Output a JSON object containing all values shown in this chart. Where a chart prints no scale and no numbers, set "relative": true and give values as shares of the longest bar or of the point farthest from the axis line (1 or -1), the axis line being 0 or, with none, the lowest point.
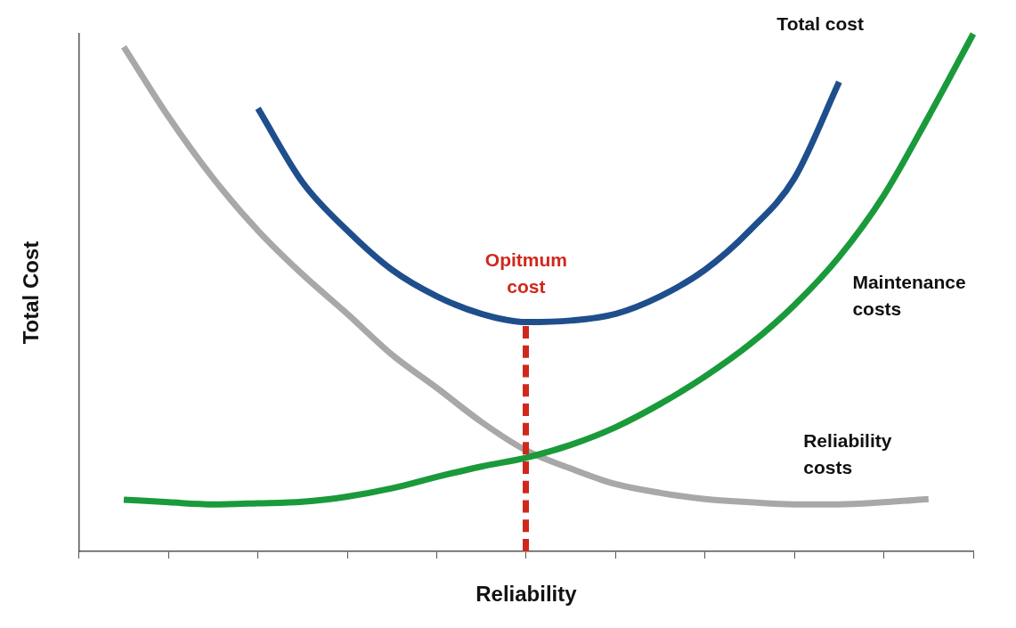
{
  "chart_data": {
    "type": "line",
    "relative": true,
    "xlabel": "Reliability",
    "ylabel": "Total Cost",
    "legend": false,
    "grid": false,
    "categories": [
      null,
      null,
      null,
      null,
      null,
      null,
      null,
      null,
      null,
      null,
      null,
      null,
      null,
      null,
      null,
      null,
      null,
      null,
      null,
      null,
      null
    ],
    "series": [
      {
        "name": "Total cost",
        "color": "#1f4e8c",
        "values": [
          null,
          null,
          null,
          null,
          0.856,
          0.713,
          0.62,
          0.544,
          0.493,
          0.459,
          0.443,
          0.446,
          0.459,
          0.493,
          0.544,
          0.62,
          0.721,
          0.907,
          null,
          null,
          null
        ]
      },
      {
        "name": "Maintenance costs",
        "color": "#1a9a3a",
        "values": [
          null,
          0.1,
          0.095,
          0.091,
          0.093,
          0.096,
          0.106,
          0.122,
          0.144,
          0.164,
          0.181,
          0.206,
          0.24,
          0.285,
          0.338,
          0.4,
          0.476,
          0.569,
          0.688,
          0.84,
          1.0
        ]
      },
      {
        "name": "Reliability costs",
        "color": "#a8a8a8",
        "values": [
          null,
          0.975,
          0.84,
          0.721,
          0.62,
          0.535,
          0.459,
          0.38,
          0.316,
          0.25,
          0.195,
          0.16,
          0.13,
          0.113,
          0.101,
          0.095,
          0.091,
          0.091,
          0.095,
          0.101,
          null
        ]
      }
    ],
    "annotations": [
      "Opitmum cost"
    ]
  }
}
